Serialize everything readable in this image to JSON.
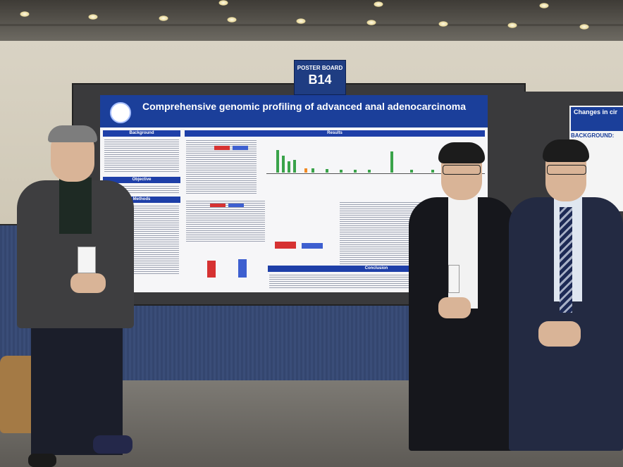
{
  "scene": {
    "board_sign_line1": "POSTER BOARD",
    "board_sign_line2": "B14",
    "poster": {
      "title": "Comprehensive genomic profiling of advanced anal adenocarcinoma",
      "sections": [
        "Background",
        "Objective",
        "Methods",
        "Results",
        "Conclusion"
      ]
    },
    "right_poster": {
      "title": "Changes in cir",
      "background_label": "BACKGROUND:"
    }
  },
  "colors": {
    "poster_header": "#1b3f9a",
    "section_bar": "#1e3fa8",
    "carpet": "#34466f"
  }
}
